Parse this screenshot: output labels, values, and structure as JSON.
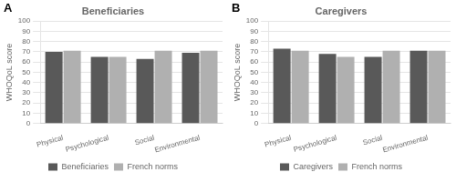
{
  "chart_data": [
    {
      "type": "bar",
      "title": "Beneficiaries",
      "annotations": [
        "A"
      ],
      "categories": [
        "Physical",
        "Psychological",
        "Social",
        "Environmental"
      ],
      "series": [
        {
          "name": "Beneficiaries",
          "color": "#595959",
          "values": [
            70,
            65,
            63,
            69
          ]
        },
        {
          "name": "French norms",
          "color": "#b0b0b0",
          "values": [
            71,
            65,
            71,
            71
          ]
        }
      ],
      "ylabel": "WHOQoL score",
      "ylim": [
        0,
        100
      ],
      "yticks": [
        0,
        10,
        20,
        30,
        40,
        50,
        60,
        70,
        80,
        90,
        100
      ],
      "grid": true,
      "legend": "bottom"
    },
    {
      "type": "bar",
      "title": "Caregivers",
      "annotations": [
        "B"
      ],
      "categories": [
        "Physical",
        "Psychological",
        "Social",
        "Environmental"
      ],
      "series": [
        {
          "name": "Caregivers",
          "color": "#595959",
          "values": [
            73,
            68,
            65,
            71
          ]
        },
        {
          "name": "French norms",
          "color": "#b0b0b0",
          "values": [
            71,
            65,
            71,
            71
          ]
        }
      ],
      "ylabel": "WHOQoL score",
      "ylim": [
        0,
        100
      ],
      "yticks": [
        0,
        10,
        20,
        30,
        40,
        50,
        60,
        70,
        80,
        90,
        100
      ],
      "grid": true,
      "legend": "bottom"
    }
  ]
}
